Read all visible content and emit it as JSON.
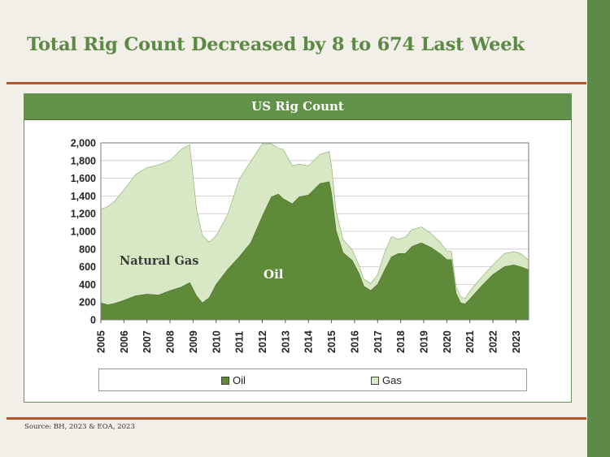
{
  "slide": {
    "title": "Total Rig Count Decreased by 8 to 674 Last Week",
    "source": "Source: BH, 2023 & EOA, 2023",
    "colors": {
      "accent_green": "#5e8a48",
      "rule": "#b4522a"
    }
  },
  "chart_data": {
    "type": "area",
    "title": "US Rig Count",
    "stacked": true,
    "x_tick_labels": [
      "2005",
      "2006",
      "2007",
      "2008",
      "2009",
      "2010",
      "2011",
      "2012",
      "2013",
      "2014",
      "2015",
      "2016",
      "2017",
      "2018",
      "2019",
      "2020",
      "2021",
      "2022",
      "2023"
    ],
    "y_tick_labels": [
      "0",
      "200",
      "400",
      "600",
      "800",
      "1,000",
      "1,200",
      "1,400",
      "1,600",
      "1,800",
      "2,000"
    ],
    "ylim": [
      0,
      2000
    ],
    "xlim": [
      2005.0,
      2023.55
    ],
    "grid": true,
    "legend_position": "bottom",
    "annotations": [
      {
        "text": "Natural Gas",
        "color": "#3a3a3a"
      },
      {
        "text": "Oil",
        "color": "#ffffff"
      }
    ],
    "series": [
      {
        "name": "Oil",
        "color": "#5f8a3a",
        "x": [
          2005.0,
          2005.3,
          2005.6,
          2006.0,
          2006.5,
          2007.0,
          2007.5,
          2008.0,
          2008.5,
          2008.85,
          2009.15,
          2009.4,
          2009.7,
          2010.0,
          2010.5,
          2011.0,
          2011.5,
          2012.0,
          2012.4,
          2012.7,
          2012.9,
          2013.3,
          2013.6,
          2014.0,
          2014.5,
          2014.9,
          2015.0,
          2015.2,
          2015.5,
          2015.9,
          2016.2,
          2016.4,
          2016.7,
          2017.0,
          2017.3,
          2017.6,
          2017.9,
          2018.2,
          2018.5,
          2018.9,
          2019.3,
          2019.7,
          2020.0,
          2020.2,
          2020.4,
          2020.6,
          2020.8,
          2021.0,
          2021.5,
          2022.0,
          2022.5,
          2022.9,
          2023.2,
          2023.55
        ],
        "values": [
          190,
          170,
          185,
          220,
          270,
          290,
          280,
          330,
          370,
          420,
          270,
          190,
          250,
          400,
          570,
          710,
          870,
          1170,
          1390,
          1420,
          1370,
          1310,
          1390,
          1410,
          1540,
          1560,
          1430,
          1010,
          760,
          670,
          520,
          380,
          330,
          400,
          560,
          710,
          750,
          750,
          830,
          870,
          820,
          750,
          680,
          680,
          300,
          190,
          180,
          235,
          380,
          510,
          600,
          620,
          600,
          565
        ]
      },
      {
        "name": "Gas",
        "color": "#d9e8c4",
        "x": [
          2005.0,
          2005.3,
          2005.6,
          2006.0,
          2006.5,
          2007.0,
          2007.5,
          2008.0,
          2008.5,
          2008.85,
          2009.15,
          2009.4,
          2009.7,
          2010.0,
          2010.5,
          2011.0,
          2011.5,
          2012.0,
          2012.4,
          2012.7,
          2012.9,
          2013.3,
          2013.6,
          2014.0,
          2014.5,
          2014.9,
          2015.0,
          2015.2,
          2015.5,
          2015.9,
          2016.2,
          2016.4,
          2016.7,
          2017.0,
          2017.3,
          2017.6,
          2017.9,
          2018.2,
          2018.5,
          2018.9,
          2019.3,
          2019.7,
          2020.0,
          2020.2,
          2020.4,
          2020.6,
          2020.8,
          2021.0,
          2021.5,
          2022.0,
          2022.5,
          2022.9,
          2023.2,
          2023.55
        ],
        "values": [
          1060,
          1110,
          1155,
          1250,
          1370,
          1430,
          1470,
          1470,
          1560,
          1560,
          980,
          760,
          630,
          550,
          620,
          880,
          920,
          820,
          600,
          520,
          560,
          430,
          370,
          330,
          330,
          340,
          310,
          220,
          150,
          120,
          90,
          80,
          80,
          110,
          200,
          230,
          160,
          185,
          190,
          180,
          160,
          130,
          100,
          95,
          80,
          70,
          60,
          90,
          100,
          110,
          150,
          150,
          150,
          109
        ]
      }
    ]
  },
  "legend": {
    "oil_label": "Oil",
    "gas_label": "Gas"
  }
}
